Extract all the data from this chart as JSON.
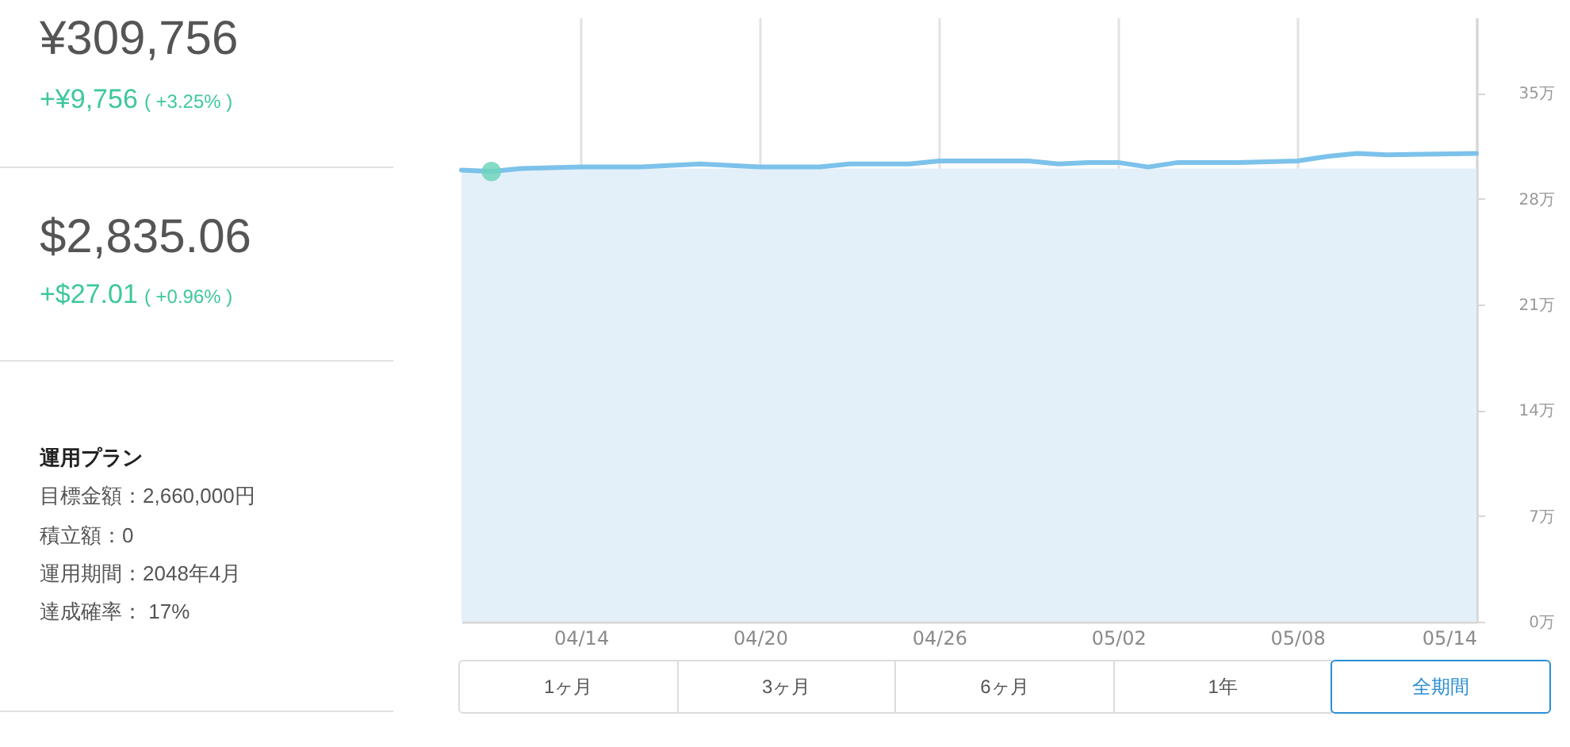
{
  "chart_data": [
    {
      "type": "other",
      "annotations": [
        "¥309,756",
        "+¥9,756",
        "( +3.25% )",
        "$2,835.06",
        "+$27.01",
        "( +0.96% )",
        "運用プラン",
        "目標金額：2,660,000円",
        "積立額：0",
        "運用期間：2048年4月",
        "達成確率： 17%"
      ]
    },
    {
      "type": "line",
      "x": [
        "--04-10",
        "--04-11",
        "--04-12",
        "--04-14",
        "--04-16",
        "--04-18",
        "--04-20",
        "--04-22",
        "--04-23",
        "--04-25",
        "--04-26",
        "--04-28",
        "--04-29",
        "--04-30",
        "--05-01",
        "--05-02",
        "--05-03",
        "--05-04",
        "--05-06",
        "--05-08",
        "--05-09",
        "--05-10",
        "--05-11",
        "--05-14"
      ],
      "series": [
        {
          "type": "area",
          "color": "#e4f0f9",
          "x": [
            "--04-10",
            "--05-14"
          ],
          "values": [
            30.0,
            30.0
          ]
        },
        {
          "type": "line",
          "color": "#7cc2eb",
          "values": [
            29.9,
            29.8,
            30.0,
            30.1,
            30.1,
            30.3,
            30.1,
            30.1,
            30.3,
            30.3,
            30.5,
            30.5,
            30.5,
            30.3,
            30.4,
            30.4,
            30.1,
            30.4,
            30.4,
            30.5,
            30.8,
            31.0,
            30.9,
            31.0
          ]
        },
        {
          "type": "scatter",
          "color": "#70d5bc",
          "x": [
            "--04-11"
          ],
          "values": [
            29.8
          ]
        }
      ],
      "xlim": [
        "--04-10",
        "--05-14"
      ],
      "xticks": [
        {
          "value": "--04-14",
          "label": "04/14"
        },
        {
          "value": "--04-20",
          "label": "04/20"
        },
        {
          "value": "--04-26",
          "label": "04/26"
        },
        {
          "value": "--05-02",
          "label": "05/02"
        },
        {
          "value": "--05-08",
          "label": "05/08"
        },
        {
          "value": "--05-14",
          "label": "05/14"
        }
      ],
      "ylim": [
        0,
        40
      ],
      "yticks": [
        {
          "value": 0,
          "label": "0万"
        },
        {
          "value": 7,
          "label": "7万"
        },
        {
          "value": 14,
          "label": "14万"
        },
        {
          "value": 21,
          "label": "21万"
        },
        {
          "value": 28,
          "label": "28万"
        },
        {
          "value": 35,
          "label": "35万"
        }
      ],
      "grid": "x"
    },
    {
      "type": "other",
      "annotations": [
        "1ヶ月",
        "3ヶ月",
        "6ヶ月",
        "1年",
        "全期間"
      ]
    }
  ]
}
